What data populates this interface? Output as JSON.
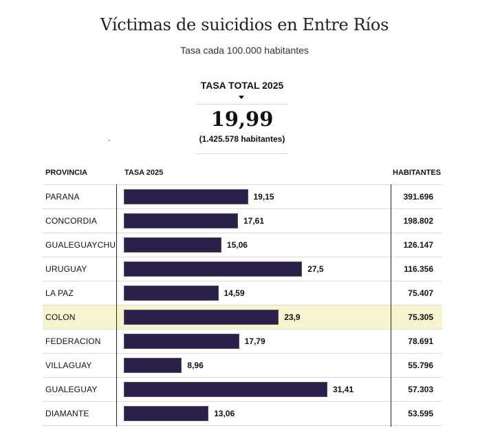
{
  "title": "Víctimas de suicidios en Entre Ríos",
  "subtitle": "Tasa cada 100.000 habitantes",
  "selector": {
    "label": "TASA TOTAL 2025"
  },
  "total": {
    "value": "19,99",
    "population": "(1.425.578 habitantes)"
  },
  "table": {
    "headers": {
      "province": "PROVINCIA",
      "rate": "TASA 2025",
      "population": "HABITANTES"
    },
    "highlight_row": "COLON"
  },
  "chart_data": {
    "type": "bar",
    "orientation": "horizontal",
    "title": "Víctimas de suicidios en Entre Ríos",
    "subtitle": "Tasa cada 100.000 habitantes",
    "xlabel": "TASA 2025",
    "ylabel": "PROVINCIA",
    "xlim": [
      0,
      35
    ],
    "categories": [
      "PARANA",
      "CONCORDIA",
      "GUALEGUAYCHU",
      "URUGUAY",
      "LA PAZ",
      "COLON",
      "FEDERACION",
      "VILLAGUAY",
      "GUALEGUAY",
      "DIAMANTE"
    ],
    "values": [
      19.15,
      17.61,
      15.06,
      27.5,
      14.59,
      23.9,
      17.79,
      8.96,
      31.41,
      13.06
    ],
    "value_labels": [
      "19,15",
      "17,61",
      "15,06",
      "27,5",
      "14,59",
      "23,9",
      "17,79",
      "8,96",
      "31,41",
      "13,06"
    ],
    "populations": [
      "391.696",
      "198.802",
      "126.147",
      "116.356",
      "75.407",
      "75.305",
      "78.691",
      "55.796",
      "57.303",
      "53.595"
    ],
    "colors": {
      "bar": "#2b1f4b",
      "highlight": "#f6f4cf"
    }
  }
}
